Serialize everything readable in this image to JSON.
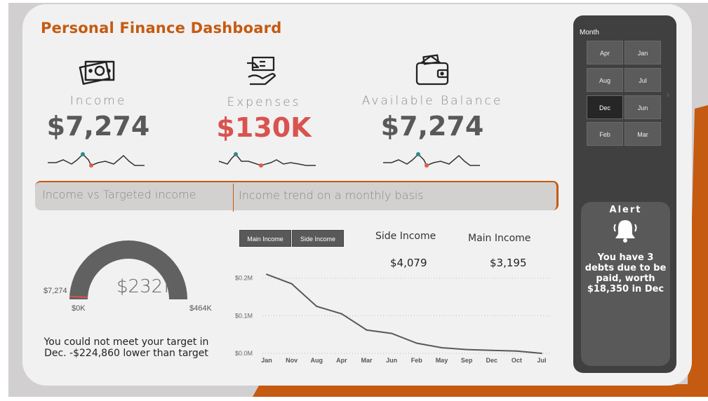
{
  "title": "Personal Finance Dashboard",
  "kpis": [
    {
      "label": "Income",
      "value": "$7,274",
      "icon": "cash-icon"
    },
    {
      "label": "Expenses",
      "value": "$130K",
      "icon": "payment-hand-icon"
    },
    {
      "label": "Available Balance",
      "value": "$7,274",
      "icon": "wallet-icon"
    }
  ],
  "sections": {
    "left": "Income vs Targeted income",
    "right": "Income trend on a monthly basis"
  },
  "gauge": {
    "value_label": "$232K",
    "min_label": "$0K",
    "max_label": "$464K",
    "target_label": "$7,274",
    "min": 0,
    "max": 464,
    "value": 232,
    "target": 7.274,
    "color": "#616161",
    "target_color": "#d9534f",
    "message": "You could not meet your target in Dec. -$224,860 lower than target"
  },
  "trend_tabs": [
    "Main Income",
    "Side Income"
  ],
  "stats": [
    {
      "label": "Side Income",
      "value": "$4,079"
    },
    {
      "label": "Main Income",
      "value": "$3,195"
    }
  ],
  "chart_data": {
    "type": "line",
    "categories": [
      "Jan",
      "Nov",
      "Aug",
      "Apr",
      "Mar",
      "Jun",
      "Feb",
      "May",
      "Sep",
      "Dec",
      "Oct",
      "Jul"
    ],
    "values": [
      0.21,
      0.185,
      0.125,
      0.105,
      0.062,
      0.053,
      0.027,
      0.015,
      0.01,
      0.008,
      0.006,
      0.0
    ],
    "ylim": [
      0,
      0.22
    ],
    "yticks": [
      0.0,
      0.1,
      0.2
    ],
    "ytick_labels": [
      "$0.0M",
      "$0.1M",
      "$0.2M"
    ],
    "grid": true,
    "line_color": "#595959",
    "title": "",
    "xlabel": "",
    "ylabel": ""
  },
  "slicer": {
    "title": "Month",
    "months": [
      "Apr",
      "Jan",
      "Aug",
      "Jul",
      "Dec",
      "Jun",
      "Feb",
      "Mar"
    ],
    "selected": "Dec"
  },
  "alert": {
    "title": "Alert",
    "message": "You have 3 debts due to be paid, worth $18,350 in Dec",
    "icon": "bell-icon"
  },
  "colors": {
    "accent": "#c55a11",
    "panel": "#f1f1f1",
    "dark": "#404040",
    "negative": "#d9534f"
  }
}
